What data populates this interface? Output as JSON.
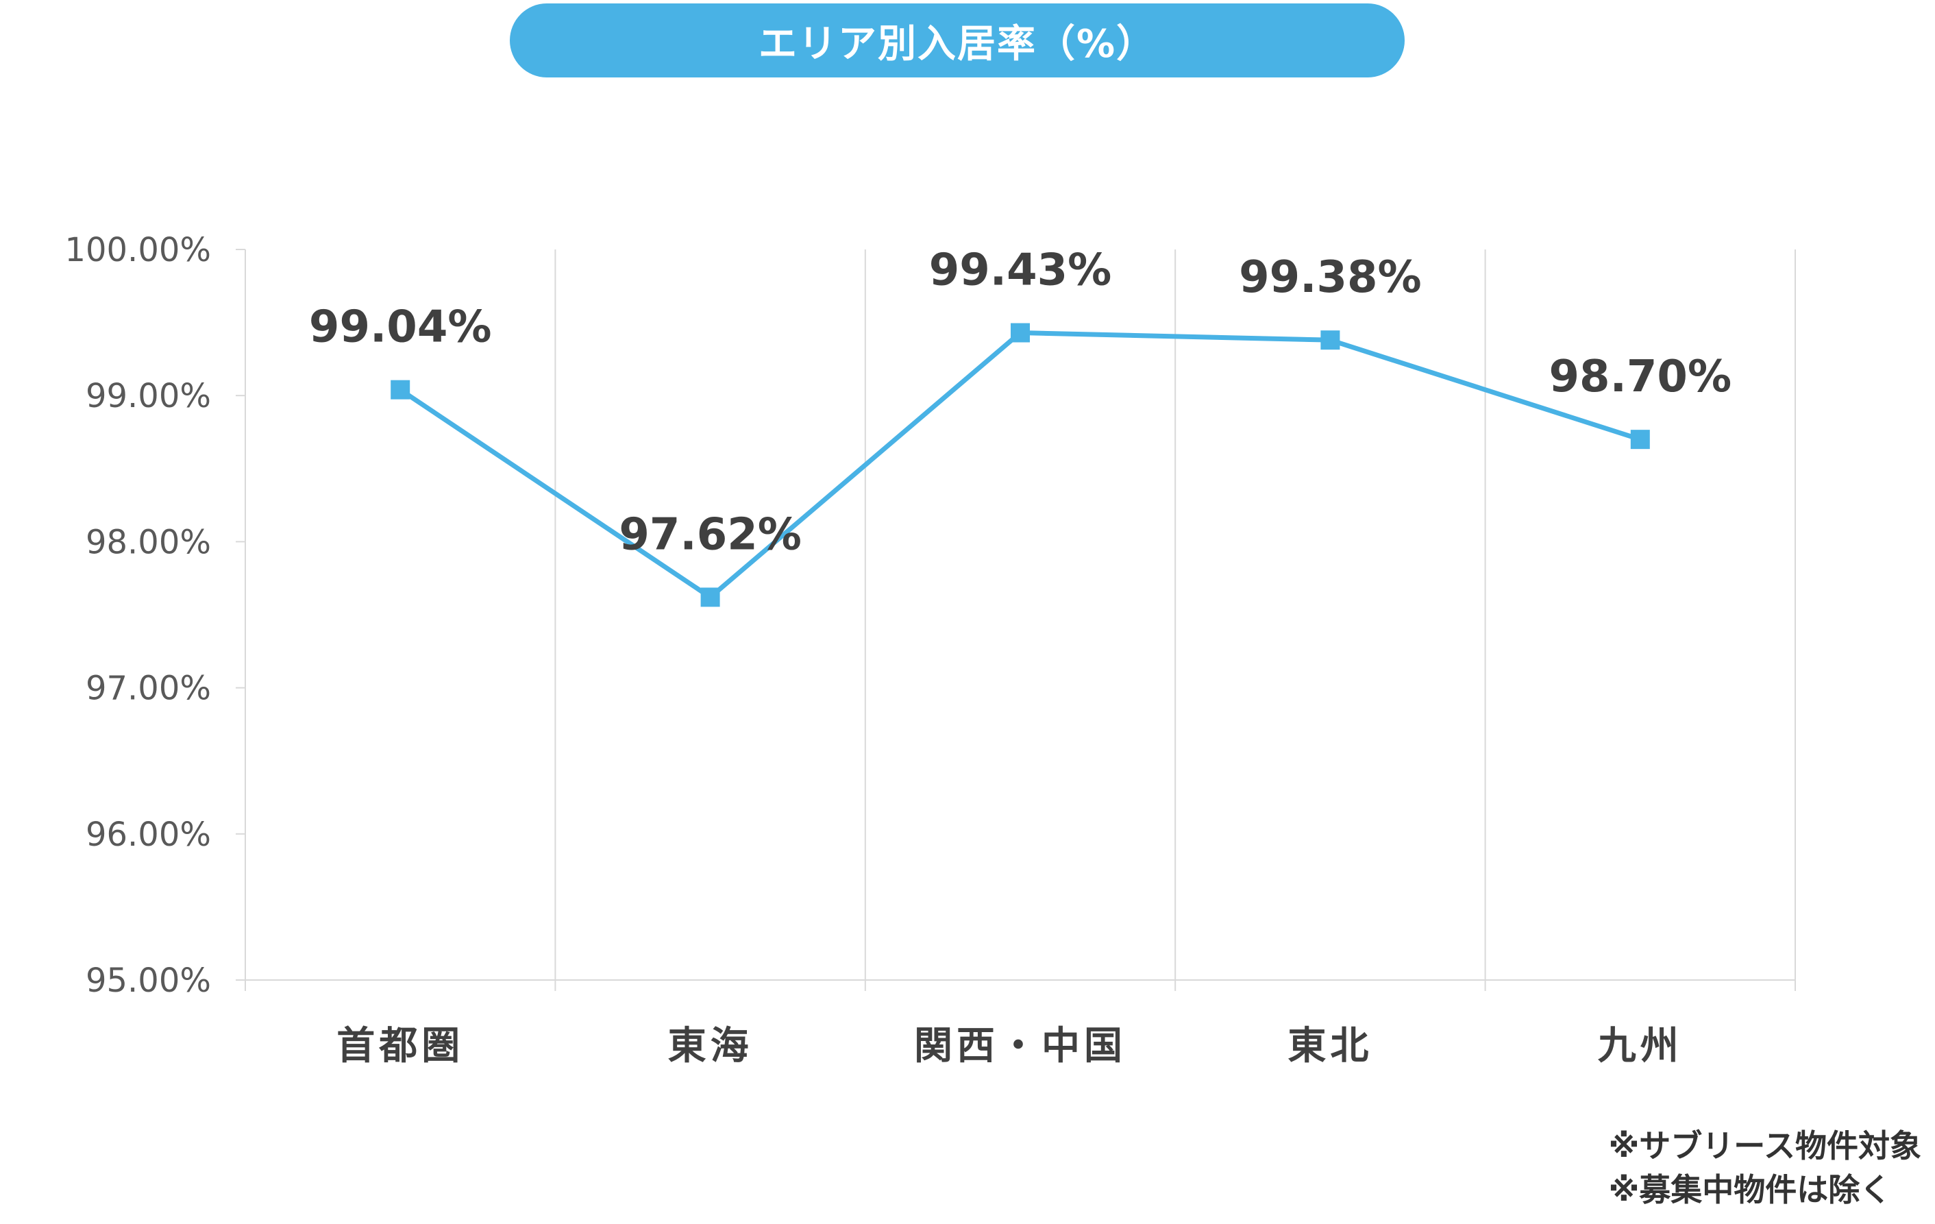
{
  "title": "エリア別入居率（%）",
  "footnotes": [
    "※サブリース物件対象",
    "※募集中物件は除く"
  ],
  "colors": {
    "accent": "#49b2e5",
    "grid": "#d9d9d9",
    "text": "#404040"
  },
  "chart_data": {
    "type": "line",
    "categories": [
      "首都圏",
      "東海",
      "関西・中国",
      "東北",
      "九州"
    ],
    "values": [
      99.04,
      97.62,
      99.43,
      99.38,
      98.7
    ],
    "data_labels": [
      "99.04%",
      "97.62%",
      "99.43%",
      "99.38%",
      "98.70%"
    ],
    "ylim": [
      95,
      100
    ],
    "y_ticks": [
      "100.00%",
      "99.00%",
      "98.00%",
      "97.00%",
      "96.00%",
      "95.00%"
    ],
    "grid": "vertical",
    "marker": "square",
    "line_color": "#49b2e5"
  }
}
